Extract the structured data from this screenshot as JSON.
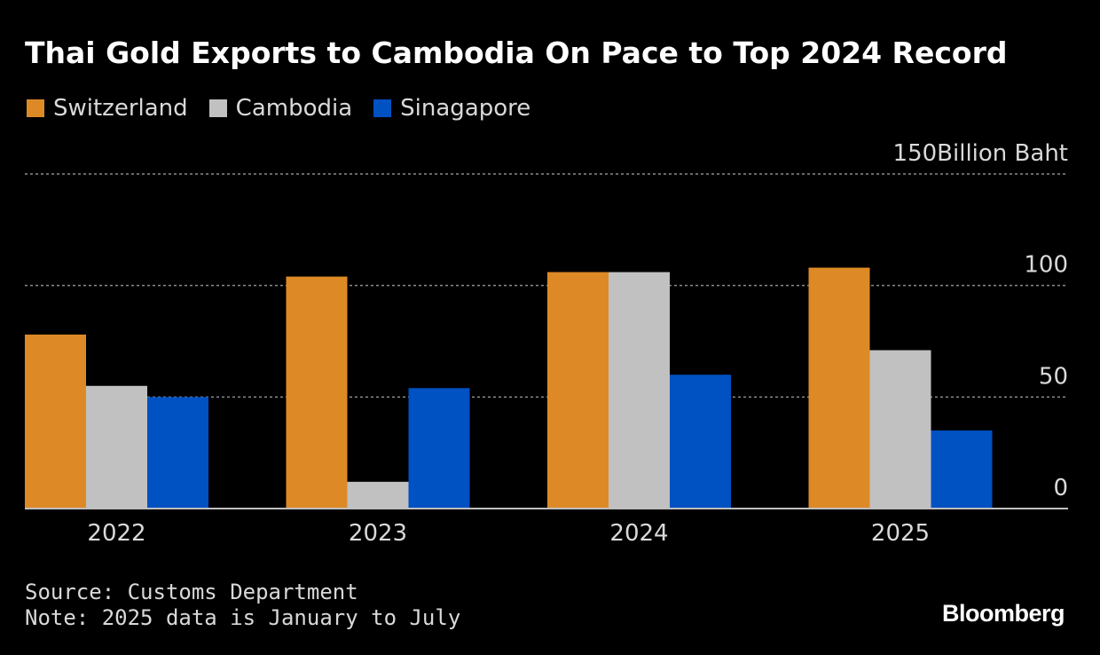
{
  "chart_data": {
    "type": "bar",
    "title": "Thai Gold Exports to Cambodia On Pace to Top 2024 Record",
    "categories": [
      "2022",
      "2023",
      "2024",
      "2025"
    ],
    "series": [
      {
        "name": "Switzerland",
        "color": "#DD8A26",
        "values": [
          78,
          104,
          106,
          108
        ]
      },
      {
        "name": "Cambodia",
        "color": "#C1C1C1",
        "values": [
          55,
          12,
          106,
          71
        ]
      },
      {
        "name": "Sinagapore",
        "color": "#0051C2",
        "values": [
          50,
          54,
          60,
          35
        ]
      }
    ],
    "ylim": [
      0,
      150
    ],
    "yticks": [
      0,
      50,
      100,
      150
    ],
    "ytick_labels": [
      "0",
      "50",
      "100",
      "150Billion Baht"
    ],
    "grid": true,
    "legend": "top-left"
  },
  "footer": {
    "source": "Source: Customs Department",
    "note": "Note: 2025 data is January to July"
  },
  "brand": "Bloomberg"
}
